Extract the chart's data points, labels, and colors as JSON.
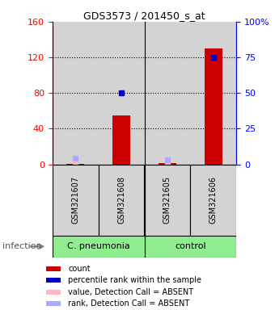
{
  "title": "GDS3573 / 201450_s_at",
  "samples": [
    "GSM321607",
    "GSM321608",
    "GSM321605",
    "GSM321606"
  ],
  "x_positions": [
    0,
    1,
    2,
    3
  ],
  "red_bar_values": [
    0.5,
    55,
    1.0,
    130
  ],
  "blue_square_values": [
    null,
    50,
    null,
    75
  ],
  "pink_dot_values": [
    0.5,
    null,
    1.0,
    null
  ],
  "light_blue_values": [
    4,
    null,
    3,
    null
  ],
  "ylim_left": [
    0,
    160
  ],
  "ylim_right": [
    0,
    100
  ],
  "left_yticks": [
    0,
    40,
    80,
    120,
    160
  ],
  "right_yticks": [
    0,
    25,
    50,
    75,
    100
  ],
  "right_yticklabels": [
    "0",
    "25",
    "50",
    "75",
    "100%"
  ],
  "group_labels": [
    "C. pneumonia",
    "control"
  ],
  "group_color": "#90EE90",
  "bar_color": "#CC0000",
  "blue_color": "#0000CC",
  "pink_color": "#FFB6C1",
  "light_blue_color": "#AAAAFF",
  "legend_items": [
    "count",
    "percentile rank within the sample",
    "value, Detection Call = ABSENT",
    "rank, Detection Call = ABSENT"
  ],
  "legend_colors": [
    "#CC0000",
    "#0000CC",
    "#FFB6C1",
    "#AAAAFF"
  ],
  "infection_label": "infection",
  "sample_bg_color": "#D3D3D3",
  "bar_width": 0.4,
  "fig_width": 3.4,
  "fig_height": 3.84
}
